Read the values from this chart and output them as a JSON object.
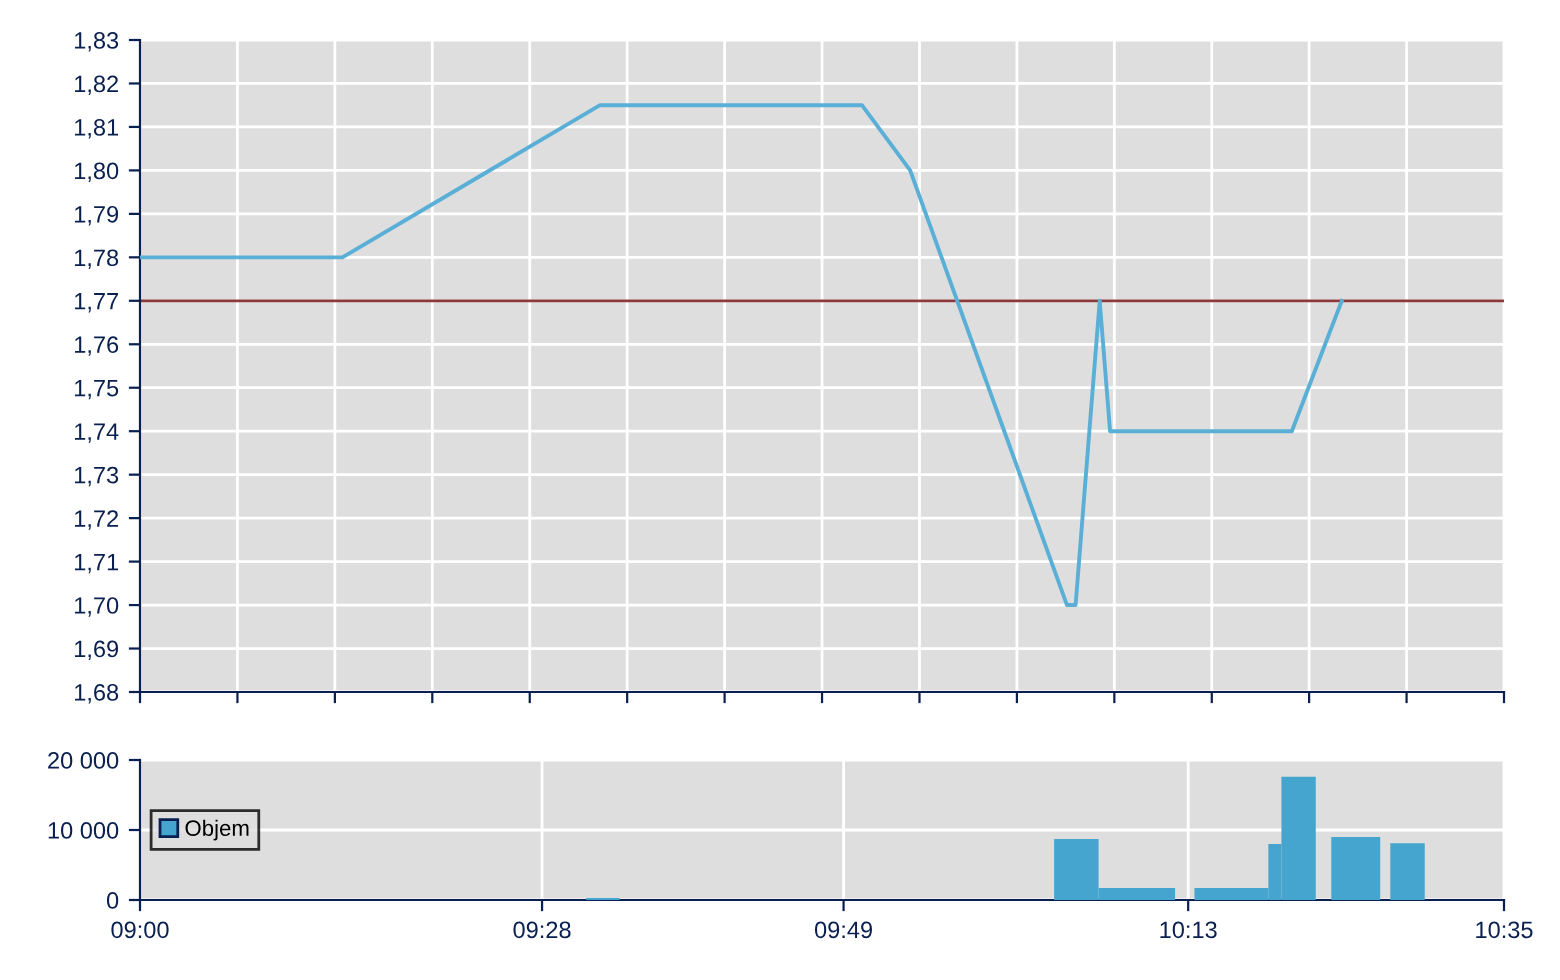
{
  "chart_data": [
    {
      "type": "line",
      "x": [
        9.0,
        9.235,
        9.534,
        9.838,
        9.894,
        10.076,
        10.086,
        10.114,
        10.126,
        10.337,
        10.395
      ],
      "series": [
        {
          "color": "#5aafd6",
          "values": [
            1.78,
            1.78,
            1.815,
            1.815,
            1.8,
            1.7,
            1.7,
            1.77,
            1.74,
            1.74,
            1.77
          ]
        }
      ],
      "ref_lines": [
        {
          "axis": "y",
          "value": 1.77,
          "color": "#8a3a3a"
        }
      ],
      "xlim": [
        9.0,
        10.5833
      ],
      "xticks": [
        {
          "value": 9.0,
          "label": null
        },
        {
          "value": 9.1131,
          "label": null
        },
        {
          "value": 9.2262,
          "label": null
        },
        {
          "value": 9.3393,
          "label": null
        },
        {
          "value": 9.4524,
          "label": null
        },
        {
          "value": 9.5655,
          "label": null
        },
        {
          "value": 9.6786,
          "label": null
        },
        {
          "value": 9.7917,
          "label": null
        },
        {
          "value": 9.9048,
          "label": null
        },
        {
          "value": 10.0179,
          "label": null
        },
        {
          "value": 10.131,
          "label": null
        },
        {
          "value": 10.2441,
          "label": null
        },
        {
          "value": 10.3571,
          "label": null
        },
        {
          "value": 10.4702,
          "label": null
        },
        {
          "value": 10.5833,
          "label": null
        }
      ],
      "ylim": [
        1.68,
        1.83
      ],
      "yticks": [
        {
          "value": 1.68,
          "label": "1,68"
        },
        {
          "value": 1.69,
          "label": "1,69"
        },
        {
          "value": 1.7,
          "label": "1,70"
        },
        {
          "value": 1.71,
          "label": "1,71"
        },
        {
          "value": 1.72,
          "label": "1,72"
        },
        {
          "value": 1.73,
          "label": "1,73"
        },
        {
          "value": 1.74,
          "label": "1,74"
        },
        {
          "value": 1.75,
          "label": "1,75"
        },
        {
          "value": 1.76,
          "label": "1,76"
        },
        {
          "value": 1.77,
          "label": "1,77"
        },
        {
          "value": 1.78,
          "label": "1,78"
        },
        {
          "value": 1.79,
          "label": "1,79"
        },
        {
          "value": 1.8,
          "label": "1,80"
        },
        {
          "value": 1.81,
          "label": "1,81"
        },
        {
          "value": 1.82,
          "label": "1,82"
        },
        {
          "value": 1.83,
          "label": "1,83"
        }
      ],
      "tick_labels": "y",
      "grid": true,
      "marker": "none",
      "line_style": "solid"
    },
    {
      "type": "histogram",
      "bins": [
        9.5178,
        9.5567,
        10.0611,
        10.1127,
        10.2015,
        10.224,
        10.3098,
        10.3249,
        10.3648,
        10.3828,
        10.4396,
        10.4513,
        10.4913
      ],
      "series": [
        {
          "name": "Objem",
          "color": "#45a5cf",
          "values": [
            300,
            0,
            8700,
            1700,
            0,
            1700,
            8000,
            17600,
            0,
            9000,
            0,
            8100
          ]
        }
      ],
      "xlim": [
        9.0,
        10.5833
      ],
      "xticks": [
        {
          "value": 9.0,
          "label": "09:00"
        },
        {
          "value": 9.4667,
          "label": "09:28"
        },
        {
          "value": 9.8167,
          "label": "09:49"
        },
        {
          "value": 10.2167,
          "label": "10:13"
        },
        {
          "value": 10.5833,
          "label": "10:35"
        }
      ],
      "ylim": [
        0,
        20000
      ],
      "yticks": [
        {
          "value": 0,
          "label": "0"
        },
        {
          "value": 10000,
          "label": "10 000"
        },
        {
          "value": 20000,
          "label": "20 000"
        }
      ],
      "grid": true,
      "legend": "left"
    }
  ]
}
